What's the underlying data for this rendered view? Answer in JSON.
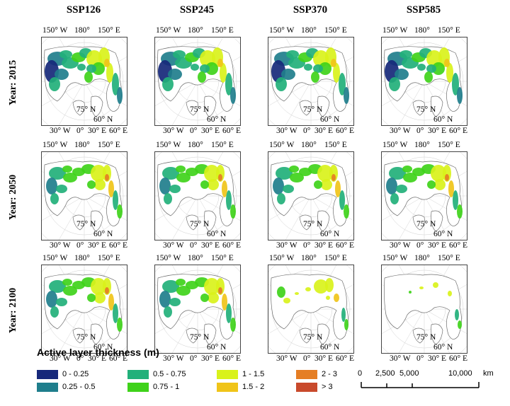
{
  "columns": [
    "SSP126",
    "SSP245",
    "SSP370",
    "SSP585"
  ],
  "rows": [
    "Year: 2015",
    "Year: 2050",
    "Year: 2100"
  ],
  "graticule_labels": {
    "top_left": "150° W",
    "top_mid": "180°",
    "top_right": "150° E",
    "lat": "75° N",
    "lat2": "60° N",
    "bottom_left": "30° W",
    "bottom_mid": "0°",
    "bottom_mid2": "30° E",
    "bottom_right": "60° E"
  },
  "legend": {
    "title": "Active layer thickness (m)",
    "classes": [
      {
        "label": "0 - 0.25",
        "color": "#16287a"
      },
      {
        "label": "0.25 - 0.5",
        "color": "#1f7e8c"
      },
      {
        "label": "0.5 - 0.75",
        "color": "#22b07a"
      },
      {
        "label": "0.75 - 1",
        "color": "#3fd21a"
      },
      {
        "label": "1 - 1.5",
        "color": "#d9f21b"
      },
      {
        "label": "1.5 - 2",
        "color": "#f0c419"
      },
      {
        "label": "2 - 3",
        "color": "#e57e24"
      },
      {
        "label": "> 3",
        "color": "#c94a2c"
      }
    ]
  },
  "scale_bar": {
    "ticks": [
      "0",
      "2,500",
      "5,000",
      "10,000"
    ],
    "unit": "km"
  }
}
